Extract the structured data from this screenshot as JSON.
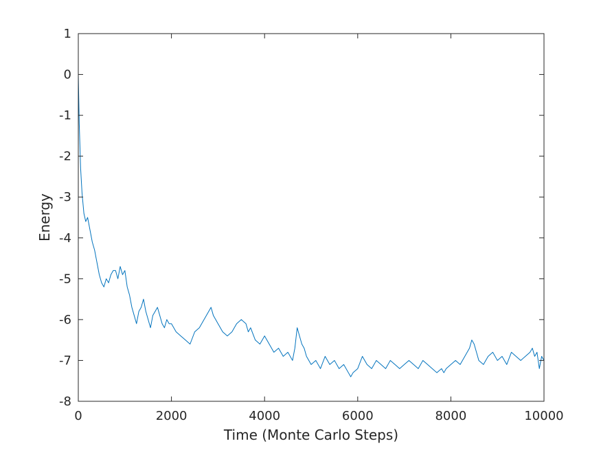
{
  "chart_data": {
    "type": "line",
    "title": "",
    "xlabel": "Time (Monte Carlo Steps)",
    "ylabel": "Energy",
    "xlim": [
      0,
      10000
    ],
    "ylim": [
      -8,
      1
    ],
    "xticks": [
      0,
      2000,
      4000,
      6000,
      8000,
      10000
    ],
    "yticks": [
      -8,
      -7,
      -6,
      -5,
      -4,
      -3,
      -2,
      -1,
      0,
      1
    ],
    "grid": false,
    "line_color": "#0072BD",
    "series": [
      {
        "x": [
          0,
          20,
          50,
          80,
          120,
          160,
          200,
          250,
          300,
          350,
          400,
          450,
          500,
          550,
          600,
          650,
          700,
          750,
          800,
          850,
          900,
          950,
          1000,
          1050,
          1100,
          1150,
          1200,
          1250,
          1300,
          1350,
          1400,
          1450,
          1500,
          1550,
          1600,
          1650,
          1700,
          1750,
          1800,
          1850,
          1900,
          1950,
          2000,
          2100,
          2200,
          2300,
          2400,
          2500,
          2600,
          2700,
          2800,
          2850,
          2900,
          2950,
          3000,
          3100,
          3200,
          3300,
          3400,
          3500,
          3600,
          3650,
          3700,
          3800,
          3900,
          4000,
          4100,
          4200,
          4300,
          4400,
          4500,
          4600,
          4650,
          4700,
          4750,
          4800,
          4850,
          4900,
          5000,
          5100,
          5200,
          5300,
          5400,
          5500,
          5600,
          5700,
          5800,
          5850,
          5900,
          6000,
          6100,
          6200,
          6300,
          6400,
          6500,
          6600,
          6700,
          6800,
          6900,
          7000,
          7100,
          7200,
          7300,
          7400,
          7500,
          7600,
          7700,
          7800,
          7850,
          7900,
          8000,
          8100,
          8200,
          8300,
          8400,
          8450,
          8500,
          8550,
          8600,
          8700,
          8800,
          8900,
          9000,
          9100,
          9200,
          9300,
          9400,
          9500,
          9600,
          9700,
          9750,
          9800,
          9850,
          9900,
          9950,
          10000
        ],
        "y": [
          0.0,
          -1.2,
          -2.3,
          -2.9,
          -3.4,
          -3.6,
          -3.5,
          -3.8,
          -4.1,
          -4.3,
          -4.6,
          -4.9,
          -5.1,
          -5.2,
          -5.0,
          -5.1,
          -4.9,
          -4.8,
          -4.8,
          -5.0,
          -4.7,
          -4.9,
          -4.8,
          -5.2,
          -5.4,
          -5.7,
          -5.9,
          -6.1,
          -5.8,
          -5.7,
          -5.5,
          -5.8,
          -6.0,
          -6.2,
          -5.9,
          -5.8,
          -5.7,
          -5.9,
          -6.1,
          -6.2,
          -6.0,
          -6.1,
          -6.1,
          -6.3,
          -6.4,
          -6.5,
          -6.6,
          -6.3,
          -6.2,
          -6.0,
          -5.8,
          -5.7,
          -5.9,
          -6.0,
          -6.1,
          -6.3,
          -6.4,
          -6.3,
          -6.1,
          -6.0,
          -6.1,
          -6.3,
          -6.2,
          -6.5,
          -6.6,
          -6.4,
          -6.6,
          -6.8,
          -6.7,
          -6.9,
          -6.8,
          -7.0,
          -6.7,
          -6.2,
          -6.4,
          -6.6,
          -6.7,
          -6.9,
          -7.1,
          -7.0,
          -7.2,
          -6.9,
          -7.1,
          -7.0,
          -7.2,
          -7.1,
          -7.3,
          -7.4,
          -7.3,
          -7.2,
          -6.9,
          -7.1,
          -7.2,
          -7.0,
          -7.1,
          -7.2,
          -7.0,
          -7.1,
          -7.2,
          -7.1,
          -7.0,
          -7.1,
          -7.2,
          -7.0,
          -7.1,
          -7.2,
          -7.3,
          -7.2,
          -7.3,
          -7.2,
          -7.1,
          -7.0,
          -7.1,
          -6.9,
          -6.7,
          -6.5,
          -6.6,
          -6.8,
          -7.0,
          -7.1,
          -6.9,
          -6.8,
          -7.0,
          -6.9,
          -7.1,
          -6.8,
          -6.9,
          -7.0,
          -6.9,
          -6.8,
          -6.7,
          -6.9,
          -6.8,
          -7.2,
          -6.9,
          -7.0
        ]
      }
    ]
  }
}
